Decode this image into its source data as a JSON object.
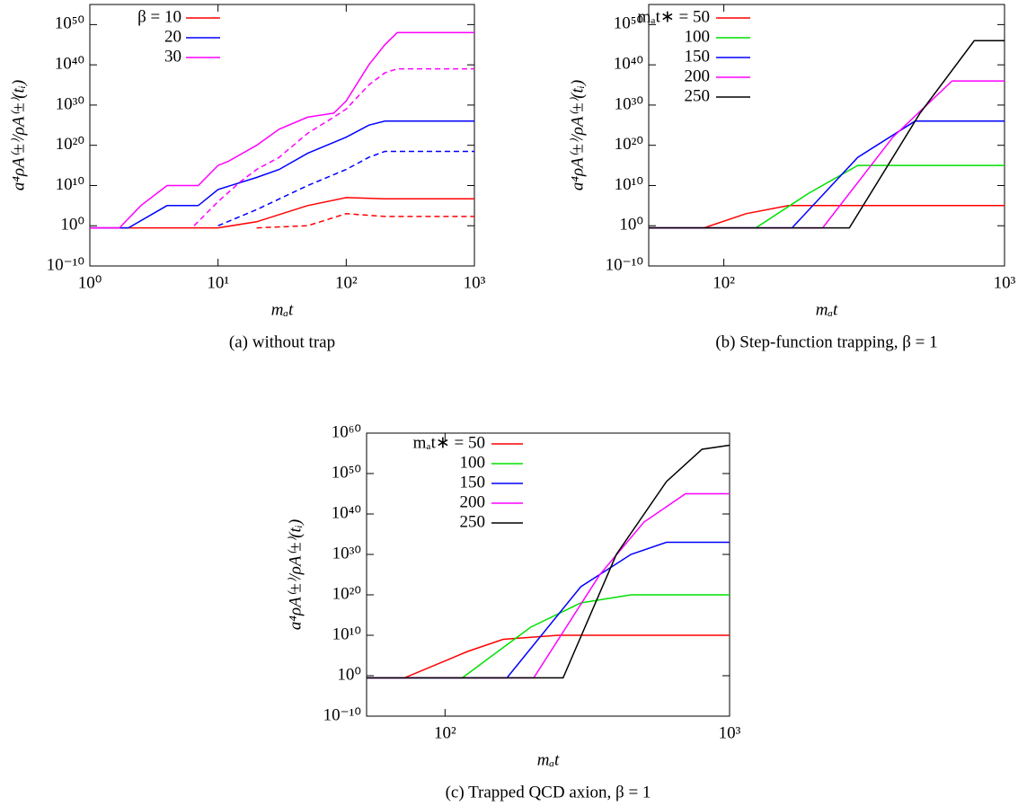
{
  "chart_data": [
    {
      "type": "line",
      "caption": "(a) without trap",
      "xlabel": "mₐt",
      "ylabel": "a⁴ρA⁽±⁾/ρA⁽±⁾(tᵢ)",
      "xlog": true,
      "ylog": true,
      "xlim": [
        1,
        1000
      ],
      "ylim": [
        1e-10,
        1e+55
      ],
      "xticks": [
        {
          "value": 1,
          "label": "10⁰"
        },
        {
          "value": 10,
          "label": "10¹"
        },
        {
          "value": 100,
          "label": "10²"
        },
        {
          "value": 1000,
          "label": "10³"
        }
      ],
      "yticks": [
        {
          "value": 1e-10,
          "label": "10⁻¹⁰"
        },
        {
          "value": 1,
          "label": "10⁰"
        },
        {
          "value": 10000000000.0,
          "label": "10¹⁰"
        },
        {
          "value": 1e+20,
          "label": "10²⁰"
        },
        {
          "value": 1e+30,
          "label": "10³⁰"
        },
        {
          "value": 1e+40,
          "label": "10⁴⁰"
        },
        {
          "value": 1e+50,
          "label": "10⁵⁰"
        }
      ],
      "legend": "top-left",
      "series": [
        {
          "name": "β = 10",
          "color": "#ff0000",
          "x": [
            1,
            10,
            20,
            50,
            100,
            200,
            1000
          ],
          "values": [
            0.3,
            0.3,
            10,
            100000.0,
            10000000.0,
            5000000.0,
            5000000.0
          ]
        },
        {
          "name": "20",
          "color": "#0000ff",
          "x": [
            1,
            2,
            4,
            7,
            10,
            20,
            30,
            50,
            100,
            150,
            200,
            1000
          ],
          "values": [
            0.3,
            0.3,
            100000.0,
            100000.0,
            1000000000.0,
            1000000000000.0,
            100000000000000.0,
            1e+18,
            1e+22,
            1e+25,
            1e+26,
            1e+26
          ]
        },
        {
          "name": "30",
          "color": "#ff00ff",
          "x": [
            1,
            1.7,
            2.5,
            4,
            7,
            10,
            12,
            20,
            30,
            50,
            80,
            100,
            150,
            200,
            250,
            1000
          ],
          "values": [
            0.3,
            0.3,
            100000.0,
            10000000000.0,
            10000000000.0,
            1000000000000000.0,
            1e+16,
            1e+20,
            1e+24,
            1e+27,
            1e+28,
            1e+31,
            1e+40,
            1e+45,
            1e+48,
            1e+48
          ]
        },
        {
          "color": "#ff0000",
          "dash": true,
          "x": [
            20,
            50,
            100,
            200,
            1000
          ],
          "values": [
            0.3,
            1,
            1000,
            200,
            200
          ]
        },
        {
          "color": "#0000ff",
          "dash": true,
          "x": [
            10,
            20,
            50,
            100,
            150,
            200,
            1000
          ],
          "values": [
            1,
            10000.0,
            10000000000.0,
            100000000000000.0,
            1e+17,
            3e+18,
            3e+18
          ]
        },
        {
          "color": "#ff00ff",
          "dash": true,
          "x": [
            6.5,
            10,
            15,
            20,
            30,
            50,
            80,
            100,
            150,
            200,
            250,
            1000
          ],
          "values": [
            1,
            1000000.0,
            100000000000.0,
            100000000000000.0,
            1e+17,
            1e+23,
            1e+27,
            1e+29,
            1e+35,
            1e+38,
            1e+39,
            1e+39
          ]
        }
      ]
    },
    {
      "type": "line",
      "caption": "(b) Step-function trapping, β = 1",
      "xlabel": "mₐt",
      "ylabel": "a⁴ρA⁽±⁾/ρA⁽±⁾(tᵢ)",
      "xlog": true,
      "ylog": true,
      "xlim": [
        54,
        1000
      ],
      "ylim": [
        1e-10,
        1e+55
      ],
      "xticks": [
        {
          "value": 100,
          "label": "10²"
        },
        {
          "value": 1000,
          "label": "10³"
        }
      ],
      "yticks": [
        {
          "value": 1e-10,
          "label": "10⁻¹⁰"
        },
        {
          "value": 1,
          "label": "10⁰"
        },
        {
          "value": 10000000000.0,
          "label": "10¹⁰"
        },
        {
          "value": 1e+20,
          "label": "10²⁰"
        },
        {
          "value": 1e+30,
          "label": "10³⁰"
        },
        {
          "value": 1e+40,
          "label": "10⁴⁰"
        },
        {
          "value": 1e+50,
          "label": "10⁵⁰"
        }
      ],
      "legend": "top-left",
      "series": [
        {
          "name": "mₐt∗ = 50",
          "color": "#ff0000",
          "x": [
            54,
            85,
            120,
            170,
            200,
            1000
          ],
          "values": [
            0.3,
            0.3,
            1000,
            100000.0,
            100000.0,
            100000.0
          ]
        },
        {
          "name": "100",
          "color": "#00e000",
          "x": [
            54,
            130,
            200,
            300,
            1000
          ],
          "values": [
            0.3,
            0.3,
            100000000.0,
            1000000000000000.0,
            1000000000000000.0
          ]
        },
        {
          "name": "150",
          "color": "#0000ff",
          "x": [
            54,
            175,
            300,
            480,
            1000
          ],
          "values": [
            0.3,
            0.3,
            1e+17,
            1e+26,
            1e+26
          ]
        },
        {
          "name": "200",
          "color": "#ff00ff",
          "x": [
            54,
            225,
            400,
            650,
            1000
          ],
          "values": [
            0.3,
            0.3,
            1e+22,
            1e+36,
            1e+36
          ]
        },
        {
          "name": "250",
          "color": "#000000",
          "x": [
            54,
            280,
            500,
            780,
            1000
          ],
          "values": [
            0.3,
            0.3,
            1e+28,
            1e+46,
            1e+46
          ]
        }
      ]
    },
    {
      "type": "line",
      "caption": "(c) Trapped QCD axion, β = 1",
      "xlabel": "mₐt",
      "ylabel": "a⁴ρA⁽±⁾/ρA⁽±⁾(tᵢ)",
      "xlog": true,
      "ylog": true,
      "xlim": [
        53,
        1000
      ],
      "ylim": [
        1e-10,
        1e+60
      ],
      "xticks": [
        {
          "value": 100,
          "label": "10²"
        },
        {
          "value": 1000,
          "label": "10³"
        }
      ],
      "yticks": [
        {
          "value": 1e-10,
          "label": "10⁻¹⁰"
        },
        {
          "value": 1,
          "label": "10⁰"
        },
        {
          "value": 10000000000.0,
          "label": "10¹⁰"
        },
        {
          "value": 1e+20,
          "label": "10²⁰"
        },
        {
          "value": 1e+30,
          "label": "10³⁰"
        },
        {
          "value": 1e+40,
          "label": "10⁴⁰"
        },
        {
          "value": 1e+50,
          "label": "10⁵⁰"
        },
        {
          "value": 1e+60,
          "label": "10⁶⁰"
        }
      ],
      "legend": "top-left",
      "series": [
        {
          "name": "mₐt∗ = 50",
          "color": "#ff0000",
          "x": [
            53,
            72,
            120,
            160,
            250,
            1000
          ],
          "values": [
            0.3,
            0.3,
            1000000.0,
            1000000000.0,
            10000000000.0,
            10000000000.0
          ]
        },
        {
          "name": "100",
          "color": "#00e000",
          "x": [
            53,
            115,
            200,
            300,
            450,
            1000
          ],
          "values": [
            0.3,
            0.3,
            1000000000000.0,
            1e+18,
            1e+20,
            1e+20
          ]
        },
        {
          "name": "150",
          "color": "#0000ff",
          "x": [
            53,
            165,
            300,
            450,
            600,
            1000
          ],
          "values": [
            0.3,
            0.3,
            1e+22,
            1e+30,
            1e+33,
            1e+33
          ]
        },
        {
          "name": "200",
          "color": "#ff00ff",
          "x": [
            53,
            205,
            350,
            500,
            700,
            1000
          ],
          "values": [
            0.3,
            0.3,
            1e+25,
            1e+38,
            1e+45,
            1e+45
          ]
        },
        {
          "name": "250",
          "color": "#000000",
          "x": [
            53,
            260,
            400,
            600,
            800,
            1000
          ],
          "values": [
            0.3,
            0.3,
            1e+30,
            1e+48,
            1e+56,
            1e+57
          ]
        }
      ]
    }
  ]
}
